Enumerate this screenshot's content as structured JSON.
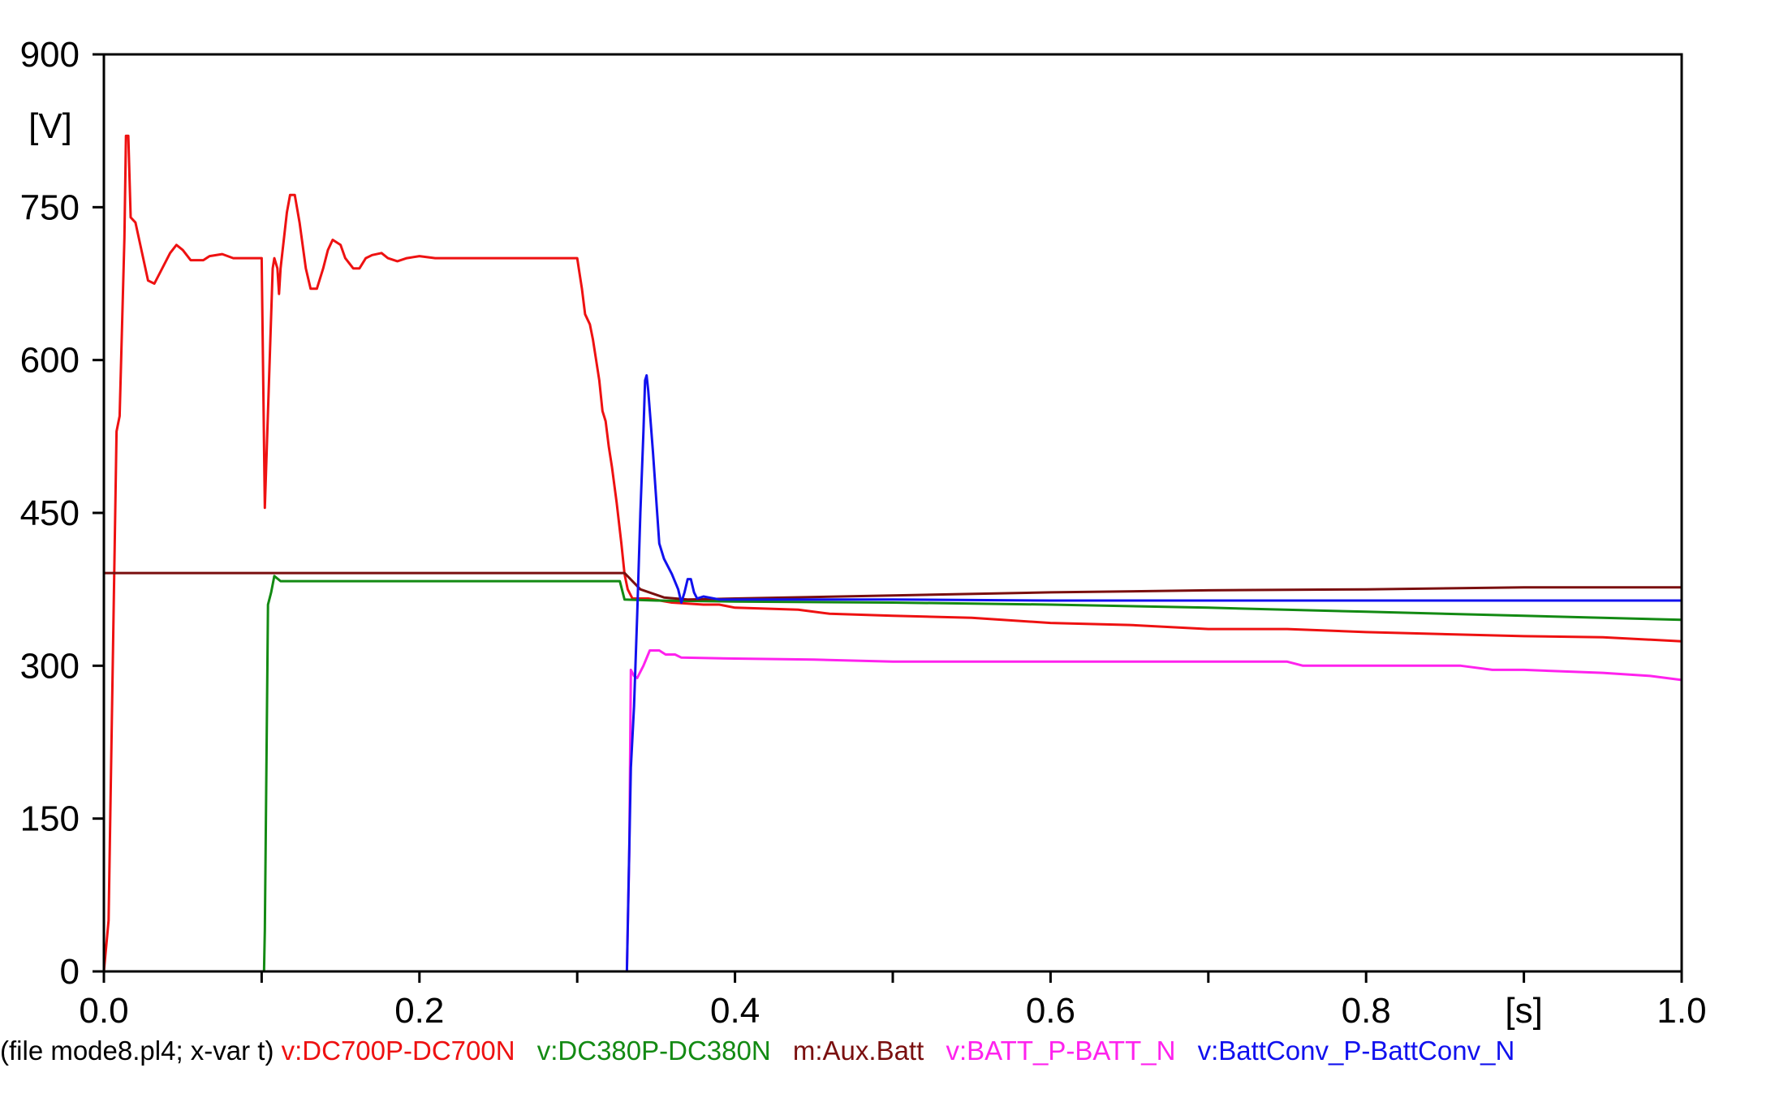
{
  "chart_data": {
    "type": "line",
    "xlim": [
      0.0,
      1.0
    ],
    "ylim": [
      0,
      900
    ],
    "x_ticks": [
      "0.0",
      "0.2",
      "0.4",
      "0.6",
      "0.8",
      "1.0"
    ],
    "y_ticks": [
      "0",
      "150",
      "300",
      "450",
      "600",
      "750",
      "900"
    ],
    "x_unit_label": "[s]",
    "y_unit_label": "[V]",
    "grid": false,
    "legend_position": "bottom",
    "legend_prefix": "(file mode8.pl4; x-var t)",
    "series": [
      {
        "name": "v:DC700P-DC700N",
        "color": "#ee1111",
        "points": [
          [
            0.0,
            0
          ],
          [
            0.003,
            50
          ],
          [
            0.008,
            530
          ],
          [
            0.01,
            545
          ],
          [
            0.013,
            720
          ],
          [
            0.014,
            820
          ],
          [
            0.0155,
            820
          ],
          [
            0.017,
            740
          ],
          [
            0.02,
            735
          ],
          [
            0.028,
            678
          ],
          [
            0.032,
            675
          ],
          [
            0.042,
            705
          ],
          [
            0.046,
            713
          ],
          [
            0.05,
            708
          ],
          [
            0.055,
            698
          ],
          [
            0.063,
            698
          ],
          [
            0.067,
            702
          ],
          [
            0.075,
            704
          ],
          [
            0.082,
            700
          ],
          [
            0.099,
            700
          ],
          [
            0.1,
            700
          ],
          [
            0.102,
            455
          ],
          [
            0.107,
            690
          ],
          [
            0.108,
            700
          ],
          [
            0.11,
            690
          ],
          [
            0.111,
            665
          ],
          [
            0.112,
            690
          ],
          [
            0.116,
            745
          ],
          [
            0.118,
            762
          ],
          [
            0.121,
            762
          ],
          [
            0.124,
            735
          ],
          [
            0.128,
            690
          ],
          [
            0.131,
            670
          ],
          [
            0.135,
            670
          ],
          [
            0.139,
            690
          ],
          [
            0.142,
            708
          ],
          [
            0.145,
            718
          ],
          [
            0.15,
            713
          ],
          [
            0.153,
            700
          ],
          [
            0.158,
            690
          ],
          [
            0.162,
            690
          ],
          [
            0.166,
            700
          ],
          [
            0.17,
            703
          ],
          [
            0.176,
            705
          ],
          [
            0.18,
            700
          ],
          [
            0.186,
            697
          ],
          [
            0.192,
            700
          ],
          [
            0.2,
            702
          ],
          [
            0.21,
            700
          ],
          [
            0.23,
            700
          ],
          [
            0.3,
            700
          ],
          [
            0.301,
            690
          ],
          [
            0.303,
            670
          ],
          [
            0.305,
            645
          ],
          [
            0.308,
            635
          ],
          [
            0.31,
            620
          ],
          [
            0.312,
            600
          ],
          [
            0.314,
            580
          ],
          [
            0.316,
            550
          ],
          [
            0.318,
            540
          ],
          [
            0.32,
            515
          ],
          [
            0.322,
            495
          ],
          [
            0.325,
            460
          ],
          [
            0.328,
            420
          ],
          [
            0.33,
            390
          ],
          [
            0.332,
            375
          ],
          [
            0.335,
            366
          ],
          [
            0.345,
            366
          ],
          [
            0.36,
            362
          ],
          [
            0.38,
            360
          ],
          [
            0.39,
            360
          ],
          [
            0.4,
            357
          ],
          [
            0.44,
            355
          ],
          [
            0.46,
            351
          ],
          [
            0.5,
            349
          ],
          [
            0.55,
            347
          ],
          [
            0.6,
            342
          ],
          [
            0.65,
            340
          ],
          [
            0.7,
            336
          ],
          [
            0.75,
            336
          ],
          [
            0.8,
            333
          ],
          [
            0.9,
            329
          ],
          [
            0.95,
            328
          ],
          [
            1.0,
            324
          ]
        ]
      },
      {
        "name": "v:DC380P-DC380N",
        "color": "#138a13",
        "points": [
          [
            0.0,
            0
          ],
          [
            0.1,
            0
          ],
          [
            0.1015,
            0
          ],
          [
            0.102,
            40
          ],
          [
            0.104,
            360
          ],
          [
            0.106,
            372
          ],
          [
            0.108,
            388
          ],
          [
            0.112,
            383
          ],
          [
            0.13,
            383
          ],
          [
            0.2,
            383
          ],
          [
            0.32,
            383
          ],
          [
            0.327,
            383
          ],
          [
            0.33,
            365
          ],
          [
            0.35,
            364
          ],
          [
            0.4,
            363
          ],
          [
            0.5,
            362
          ],
          [
            0.6,
            360
          ],
          [
            0.7,
            357
          ],
          [
            0.8,
            353
          ],
          [
            0.9,
            349
          ],
          [
            1.0,
            345
          ]
        ]
      },
      {
        "name": "m:Aux.Batt",
        "color": "#7a0f0f",
        "points": [
          [
            0.0,
            391
          ],
          [
            0.1,
            391
          ],
          [
            0.2,
            391
          ],
          [
            0.3,
            391
          ],
          [
            0.33,
            391
          ],
          [
            0.34,
            375
          ],
          [
            0.355,
            367
          ],
          [
            0.37,
            365
          ],
          [
            0.4,
            366
          ],
          [
            0.5,
            369
          ],
          [
            0.6,
            372
          ],
          [
            0.7,
            374
          ],
          [
            0.8,
            375
          ],
          [
            0.9,
            377
          ],
          [
            1.0,
            377
          ]
        ]
      },
      {
        "name": "v:BATT_P-BATT_N",
        "color": "#ff22ee",
        "points": [
          [
            0.0,
            0
          ],
          [
            0.1,
            0
          ],
          [
            0.2,
            0
          ],
          [
            0.3,
            0
          ],
          [
            0.33,
            0
          ],
          [
            0.3315,
            0
          ],
          [
            0.333,
            120
          ],
          [
            0.334,
            296
          ],
          [
            0.336,
            290
          ],
          [
            0.338,
            288
          ],
          [
            0.342,
            300
          ],
          [
            0.346,
            315
          ],
          [
            0.352,
            315
          ],
          [
            0.356,
            311
          ],
          [
            0.362,
            311
          ],
          [
            0.366,
            308
          ],
          [
            0.4,
            307
          ],
          [
            0.45,
            306
          ],
          [
            0.5,
            304
          ],
          [
            0.6,
            304
          ],
          [
            0.7,
            304
          ],
          [
            0.75,
            304
          ],
          [
            0.76,
            300
          ],
          [
            0.86,
            300
          ],
          [
            0.88,
            296
          ],
          [
            0.9,
            296
          ],
          [
            0.95,
            293
          ],
          [
            0.98,
            290
          ],
          [
            1.0,
            286
          ]
        ]
      },
      {
        "name": "v:BattConv_P-BattConv_N",
        "color": "#1111ee",
        "points": [
          [
            0.0,
            0
          ],
          [
            0.1,
            0
          ],
          [
            0.2,
            0
          ],
          [
            0.3,
            0
          ],
          [
            0.33,
            0
          ],
          [
            0.3315,
            0
          ],
          [
            0.334,
            200
          ],
          [
            0.336,
            260
          ],
          [
            0.338,
            350
          ],
          [
            0.34,
            450
          ],
          [
            0.342,
            530
          ],
          [
            0.343,
            580
          ],
          [
            0.344,
            585
          ],
          [
            0.345,
            570
          ],
          [
            0.348,
            510
          ],
          [
            0.352,
            420
          ],
          [
            0.355,
            405
          ],
          [
            0.36,
            390
          ],
          [
            0.364,
            375
          ],
          [
            0.366,
            362
          ],
          [
            0.368,
            372
          ],
          [
            0.37,
            385
          ],
          [
            0.372,
            385
          ],
          [
            0.374,
            372
          ],
          [
            0.376,
            366
          ],
          [
            0.38,
            368
          ],
          [
            0.39,
            365
          ],
          [
            0.4,
            365
          ],
          [
            0.5,
            365
          ],
          [
            0.6,
            364
          ],
          [
            0.7,
            364
          ],
          [
            0.8,
            364
          ],
          [
            0.9,
            364
          ],
          [
            1.0,
            364
          ]
        ]
      }
    ]
  }
}
